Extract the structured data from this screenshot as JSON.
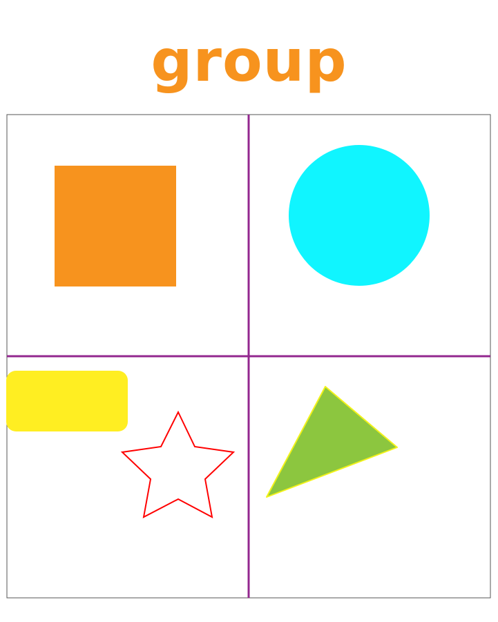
{
  "title": {
    "text": "group",
    "color": "#F7931E"
  },
  "frame": {
    "border_color": "#555555",
    "divider_color": "#93278F"
  },
  "shapes": {
    "square": {
      "fill": "#F7931E"
    },
    "circle": {
      "fill": "#10F5FF"
    },
    "rounded_rectangle": {
      "fill": "#FFEE22"
    },
    "star": {
      "fill": "none",
      "stroke": "#FF0000"
    },
    "triangle": {
      "fill": "#8CC63F",
      "stroke": "#F2F21A"
    }
  }
}
